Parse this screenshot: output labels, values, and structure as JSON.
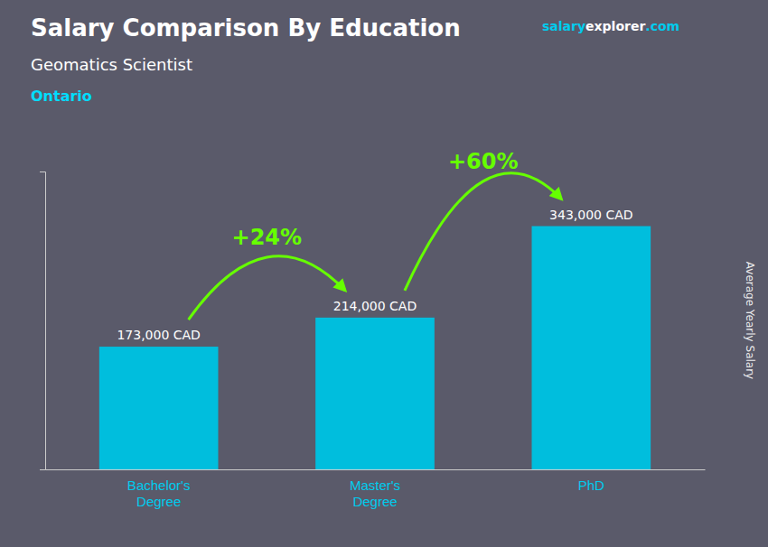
{
  "chart_data": {
    "type": "bar",
    "title": "Salary Comparison By Education",
    "subtitle": "Geomatics Scientist",
    "ylabel": "Average Yearly Salary",
    "categories": [
      "Bachelor's\nDegree",
      "Master's\nDegree",
      "PhD"
    ],
    "values": [
      173000,
      214000,
      343000
    ],
    "value_labels": [
      "173,000 CAD",
      "214,000 CAD",
      "343,000 CAD"
    ],
    "data_labels": true,
    "color": "#00BEDD",
    "ylim": [
      0,
      420000
    ],
    "tick_labels": "x",
    "grid": false,
    "annotations": [
      {
        "text": "Ontario",
        "color": "#00DDFF"
      },
      {
        "text": "salary",
        "color": "#00CCEE"
      },
      {
        "text": "explorer",
        "color": "#FFFFFF"
      },
      {
        "text": ".com",
        "color": "#00CCEE"
      },
      {
        "text": "+24%",
        "color": "#66FF00"
      },
      {
        "text": "+60%",
        "color": "#66FF00"
      }
    ]
  }
}
